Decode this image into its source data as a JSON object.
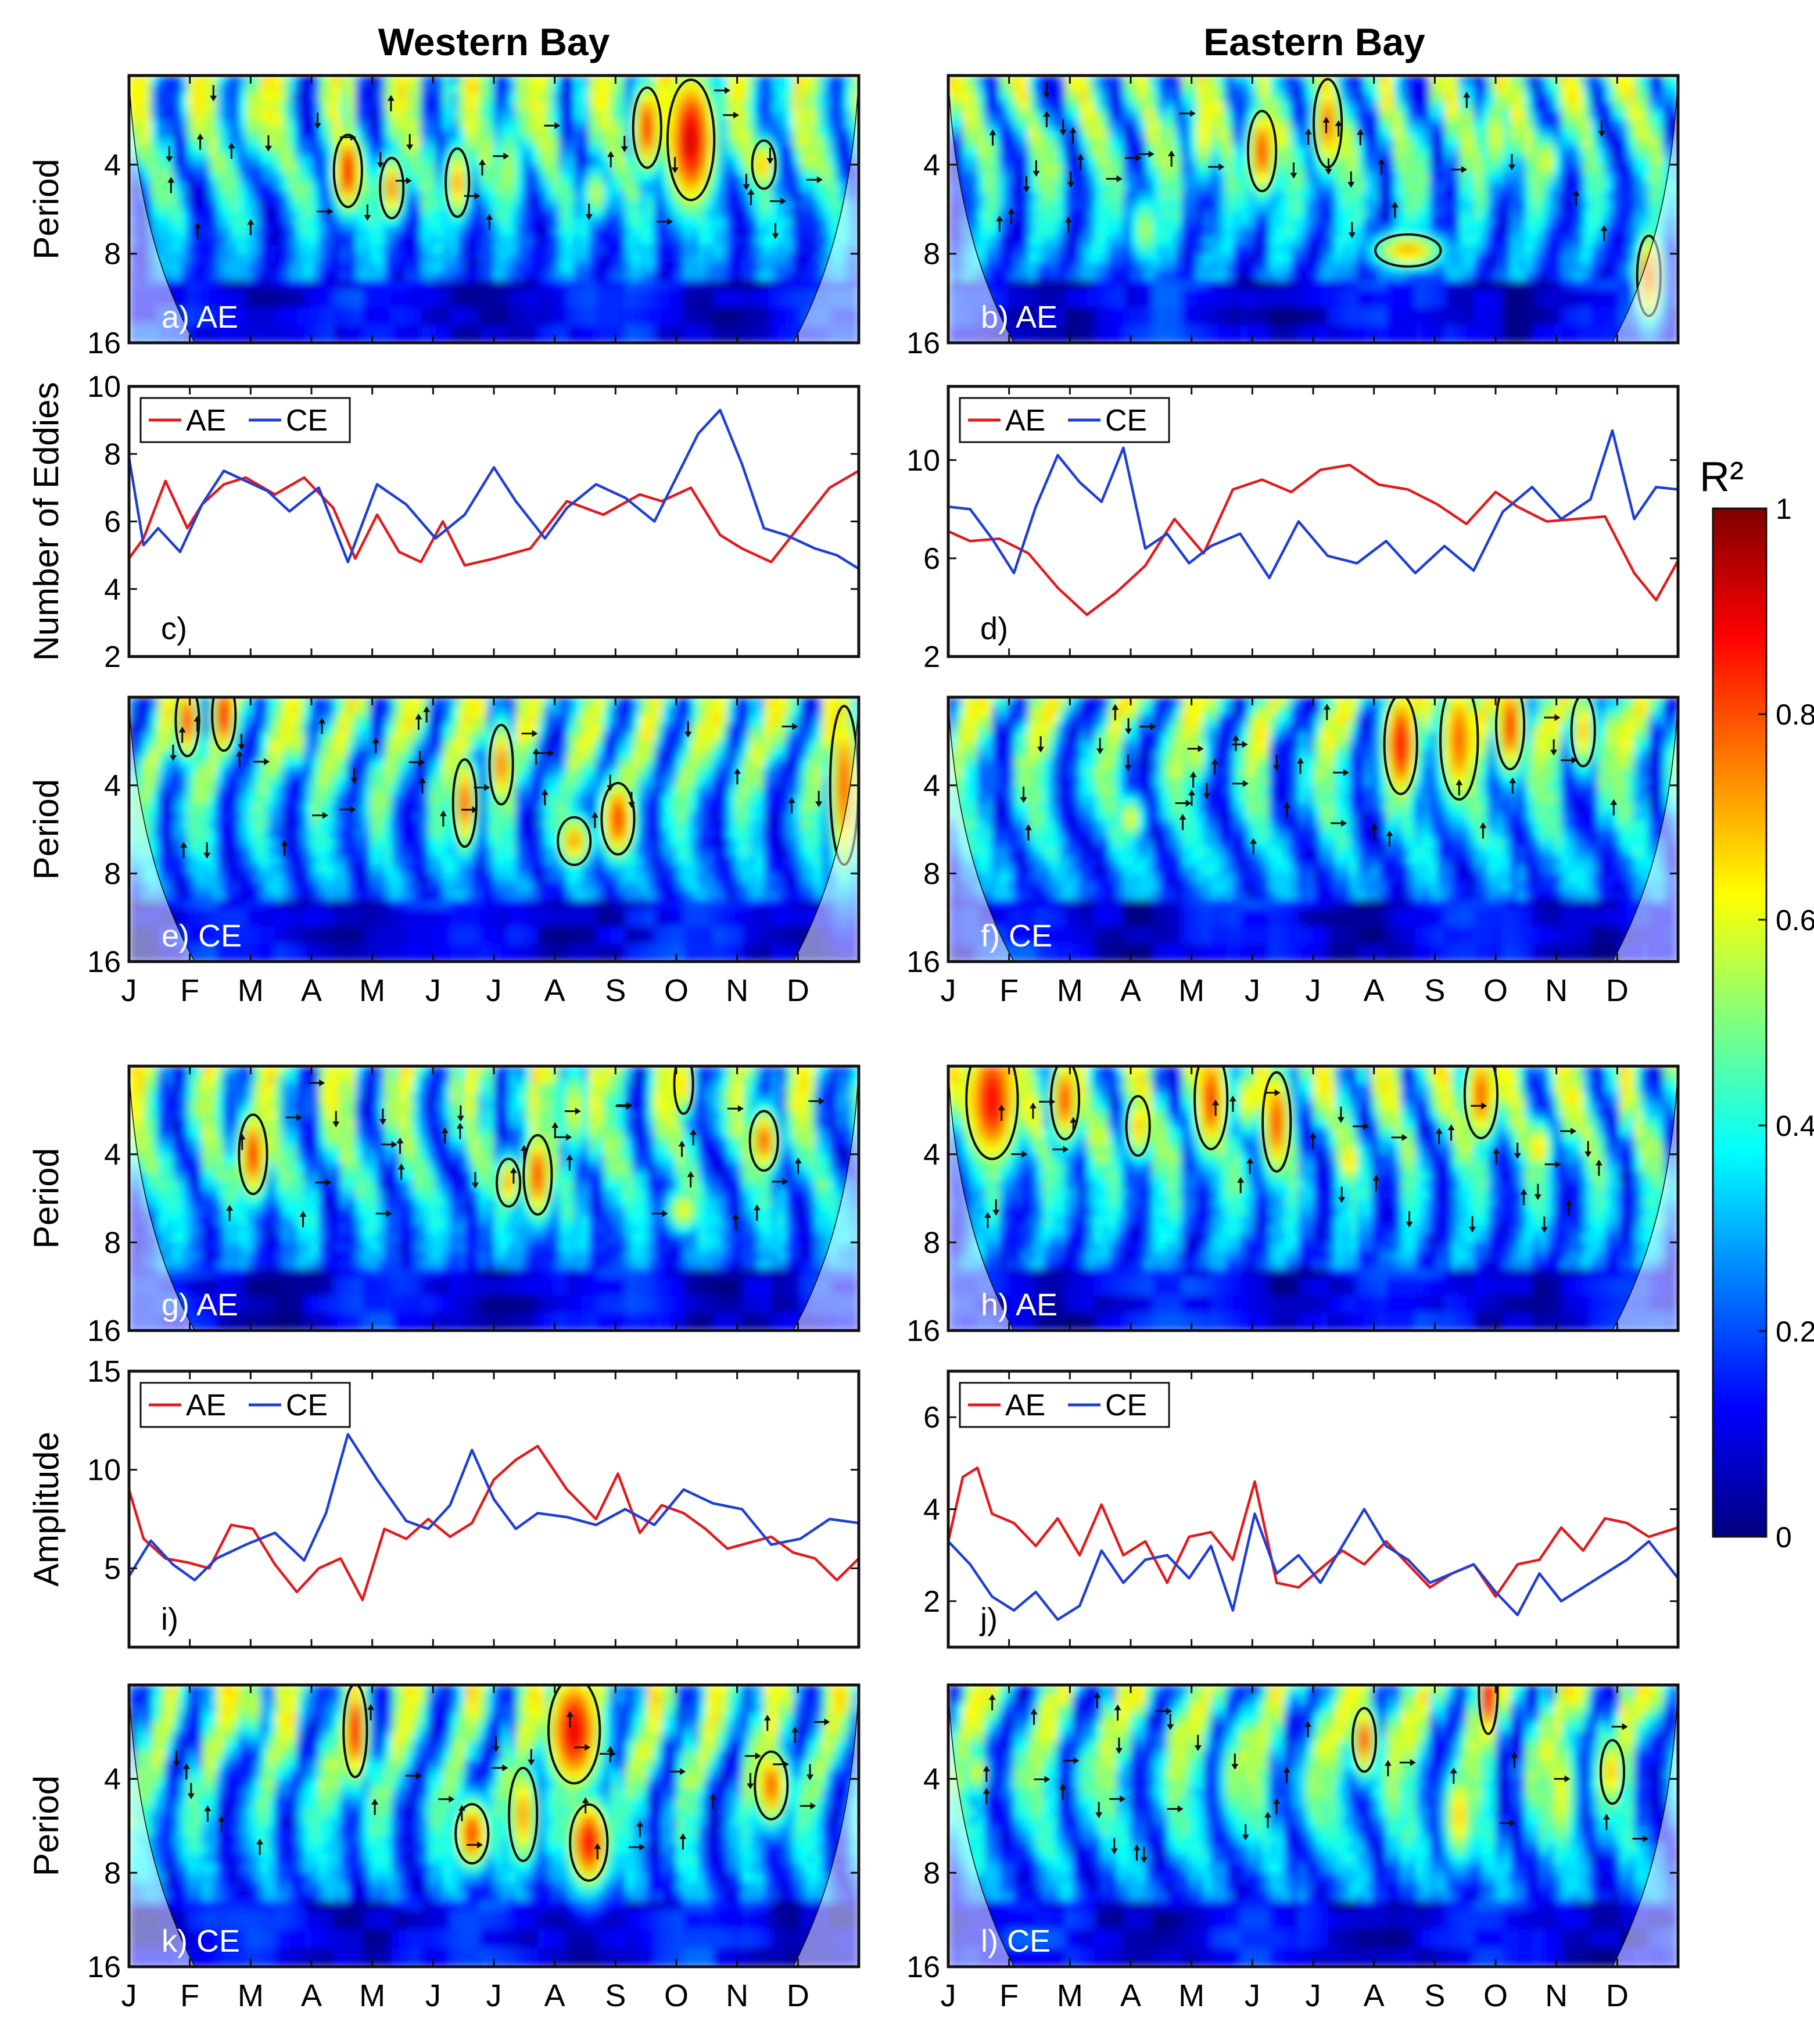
{
  "figure": {
    "col_titles": [
      "Western Bay",
      "Eastern Bay"
    ],
    "colorbar": {
      "title": "R²",
      "ticks": [
        "0",
        "0.2",
        "0.4",
        "0.6",
        "0.8",
        "1"
      ],
      "min": 0,
      "max": 1
    },
    "months": [
      "J",
      "F",
      "M",
      "A",
      "M",
      "J",
      "J",
      "A",
      "S",
      "O",
      "N",
      "D"
    ],
    "period_ticks": [
      "4",
      "8",
      "16"
    ],
    "ylabels": {
      "period": "Period",
      "eddies": "Number of Eddies",
      "amplitude": "Amplitude"
    },
    "legend": {
      "ae": "AE",
      "ce": "CE"
    }
  },
  "colors": {
    "ae": "#e31a1c",
    "ce": "#1f3fd6",
    "frame": "#111111"
  },
  "chart_data": [
    {
      "id": "a",
      "type": "heatmap",
      "label": "a) AE",
      "ylabel": "Period",
      "yticks": [
        4,
        8,
        16
      ],
      "blobs": [
        [
          0.3,
          4.2,
          0.012,
          0.18,
          0.85
        ],
        [
          0.36,
          4.8,
          0.01,
          0.15,
          0.75
        ],
        [
          0.45,
          4.6,
          0.01,
          0.17,
          0.72
        ],
        [
          0.77,
          3.3,
          0.02,
          0.3,
          0.92
        ],
        [
          0.71,
          3.0,
          0.012,
          0.2,
          0.82
        ],
        [
          0.87,
          4.0,
          0.01,
          0.12,
          0.7
        ],
        [
          0.93,
          3.8,
          0.008,
          0.1,
          0.62
        ],
        [
          0.17,
          2.6,
          0.01,
          0.2,
          0.6
        ],
        [
          0.52,
          4.2,
          0.012,
          0.25,
          0.55
        ],
        [
          0.64,
          5.0,
          0.01,
          0.12,
          0.58
        ]
      ]
    },
    {
      "id": "b",
      "type": "heatmap",
      "label": "b) AE",
      "ylabel": "",
      "yticks": [
        4,
        8,
        16
      ],
      "blobs": [
        [
          0.43,
          3.6,
          0.012,
          0.2,
          0.8
        ],
        [
          0.52,
          2.9,
          0.012,
          0.22,
          0.76
        ],
        [
          0.35,
          3.1,
          0.01,
          0.2,
          0.65
        ],
        [
          0.63,
          7.8,
          0.028,
          0.08,
          0.7
        ],
        [
          0.82,
          3.9,
          0.01,
          0.12,
          0.62
        ],
        [
          0.96,
          9.5,
          0.01,
          0.2,
          0.78
        ],
        [
          0.27,
          6.6,
          0.012,
          0.15,
          0.55
        ],
        [
          0.75,
          3.2,
          0.012,
          0.2,
          0.6
        ]
      ]
    },
    {
      "id": "c",
      "type": "line",
      "label": "c)",
      "ylabel": "Number of Eddies",
      "ylim": [
        2,
        10
      ],
      "yticks": [
        2,
        4,
        6,
        8,
        10
      ],
      "series": [
        {
          "name": "AE",
          "x": [
            0,
            0.02,
            0.05,
            0.08,
            0.1,
            0.13,
            0.16,
            0.2,
            0.24,
            0.28,
            0.31,
            0.34,
            0.37,
            0.4,
            0.43,
            0.46,
            0.5,
            0.55,
            0.6,
            0.65,
            0.7,
            0.73,
            0.77,
            0.81,
            0.84,
            0.88,
            0.92,
            0.96,
            1.0
          ],
          "values": [
            4.9,
            5.5,
            7.2,
            5.8,
            6.5,
            7.1,
            7.3,
            6.8,
            7.3,
            6.4,
            4.9,
            6.2,
            5.1,
            4.8,
            6.0,
            4.7,
            4.9,
            5.2,
            6.6,
            6.2,
            6.8,
            6.6,
            7.0,
            5.6,
            5.2,
            4.8,
            5.9,
            7.0,
            7.5
          ]
        },
        {
          "name": "CE",
          "x": [
            0,
            0.02,
            0.04,
            0.07,
            0.1,
            0.13,
            0.16,
            0.19,
            0.22,
            0.26,
            0.3,
            0.34,
            0.38,
            0.42,
            0.46,
            0.5,
            0.53,
            0.57,
            0.6,
            0.64,
            0.68,
            0.72,
            0.75,
            0.78,
            0.81,
            0.84,
            0.87,
            0.9,
            0.94,
            0.97,
            1.0
          ],
          "values": [
            7.9,
            5.3,
            5.8,
            5.1,
            6.5,
            7.5,
            7.2,
            6.9,
            6.3,
            7.0,
            4.8,
            7.1,
            6.5,
            5.5,
            6.2,
            7.6,
            6.6,
            5.5,
            6.4,
            7.1,
            6.7,
            6.0,
            7.3,
            8.6,
            9.3,
            7.7,
            5.8,
            5.6,
            5.2,
            5.0,
            4.6
          ]
        }
      ]
    },
    {
      "id": "d",
      "type": "line",
      "label": "d)",
      "ylabel": "",
      "ylim": [
        2,
        13
      ],
      "yticks": [
        2,
        6,
        10
      ],
      "series": [
        {
          "name": "AE",
          "x": [
            0,
            0.03,
            0.07,
            0.11,
            0.15,
            0.19,
            0.23,
            0.27,
            0.31,
            0.35,
            0.39,
            0.43,
            0.47,
            0.51,
            0.55,
            0.59,
            0.63,
            0.67,
            0.71,
            0.75,
            0.78,
            0.82,
            0.86,
            0.9,
            0.94,
            0.97,
            1.0
          ],
          "values": [
            7.1,
            6.7,
            6.8,
            6.2,
            4.8,
            3.7,
            4.6,
            5.7,
            7.6,
            6.2,
            8.8,
            9.2,
            8.7,
            9.6,
            9.8,
            9.0,
            8.8,
            8.2,
            7.4,
            8.7,
            8.1,
            7.5,
            7.6,
            7.7,
            5.4,
            4.3,
            5.9
          ]
        },
        {
          "name": "CE",
          "x": [
            0,
            0.03,
            0.06,
            0.09,
            0.12,
            0.15,
            0.18,
            0.21,
            0.24,
            0.27,
            0.3,
            0.33,
            0.36,
            0.4,
            0.44,
            0.48,
            0.52,
            0.56,
            0.6,
            0.64,
            0.68,
            0.72,
            0.76,
            0.8,
            0.84,
            0.88,
            0.91,
            0.94,
            0.97,
            1.0
          ],
          "values": [
            8.1,
            8.0,
            6.8,
            5.4,
            8.1,
            10.2,
            9.1,
            8.3,
            10.5,
            6.4,
            7.0,
            5.8,
            6.5,
            7.0,
            5.2,
            7.5,
            6.1,
            5.8,
            6.7,
            5.4,
            6.5,
            5.5,
            7.9,
            8.9,
            7.6,
            8.4,
            11.2,
            7.6,
            8.9,
            8.8
          ]
        }
      ]
    },
    {
      "id": "e",
      "type": "heatmap",
      "label": "e) CE",
      "ylabel": "Period",
      "yticks": [
        4,
        8,
        16
      ],
      "blobs": [
        [
          0.08,
          2.4,
          0.01,
          0.18,
          0.8
        ],
        [
          0.13,
          2.3,
          0.01,
          0.18,
          0.85
        ],
        [
          0.46,
          4.6,
          0.01,
          0.22,
          0.78
        ],
        [
          0.51,
          3.4,
          0.01,
          0.2,
          0.76
        ],
        [
          0.61,
          6.2,
          0.014,
          0.12,
          0.72
        ],
        [
          0.67,
          5.2,
          0.014,
          0.18,
          0.82
        ],
        [
          0.98,
          4.0,
          0.012,
          0.4,
          0.78
        ],
        [
          0.23,
          2.8,
          0.008,
          0.12,
          0.62
        ],
        [
          0.34,
          4.6,
          0.01,
          0.2,
          0.55
        ]
      ]
    },
    {
      "id": "f",
      "type": "heatmap",
      "label": "f) CE",
      "ylabel": "",
      "yticks": [
        4,
        8,
        16
      ],
      "blobs": [
        [
          0.62,
          2.9,
          0.014,
          0.25,
          0.88
        ],
        [
          0.7,
          2.8,
          0.016,
          0.3,
          0.78
        ],
        [
          0.77,
          2.5,
          0.012,
          0.22,
          0.82
        ],
        [
          0.87,
          2.6,
          0.01,
          0.18,
          0.7
        ],
        [
          0.34,
          3.1,
          0.01,
          0.15,
          0.6
        ],
        [
          0.25,
          5.2,
          0.01,
          0.1,
          0.62
        ],
        [
          0.91,
          2.7,
          0.01,
          0.15,
          0.6
        ]
      ]
    },
    {
      "id": "g",
      "type": "heatmap",
      "label": "g) AE",
      "ylabel": "Period",
      "yticks": [
        4,
        8,
        16
      ],
      "blobs": [
        [
          0.17,
          4.0,
          0.012,
          0.2,
          0.82
        ],
        [
          0.52,
          5.0,
          0.01,
          0.12,
          0.72
        ],
        [
          0.56,
          4.7,
          0.012,
          0.2,
          0.8
        ],
        [
          0.76,
          2.3,
          0.008,
          0.15,
          0.7
        ],
        [
          0.87,
          3.6,
          0.012,
          0.15,
          0.78
        ],
        [
          0.76,
          6.2,
          0.014,
          0.1,
          0.62
        ],
        [
          0.61,
          2.8,
          0.012,
          0.2,
          0.6
        ],
        [
          0.38,
          2.8,
          0.01,
          0.15,
          0.55
        ]
      ]
    },
    {
      "id": "h",
      "type": "heatmap",
      "label": "h) AE",
      "ylabel": "",
      "yticks": [
        4,
        8,
        16
      ],
      "blobs": [
        [
          0.06,
          2.6,
          0.022,
          0.3,
          0.88
        ],
        [
          0.16,
          2.6,
          0.012,
          0.2,
          0.8
        ],
        [
          0.36,
          2.6,
          0.014,
          0.25,
          0.82
        ],
        [
          0.45,
          3.1,
          0.012,
          0.25,
          0.8
        ],
        [
          0.26,
          3.2,
          0.01,
          0.15,
          0.7
        ],
        [
          0.73,
          2.5,
          0.014,
          0.22,
          0.78
        ],
        [
          0.81,
          3.8,
          0.01,
          0.12,
          0.68
        ],
        [
          0.55,
          4.2,
          0.01,
          0.12,
          0.68
        ],
        [
          0.41,
          2.6,
          0.01,
          0.15,
          0.65
        ]
      ]
    },
    {
      "id": "i",
      "type": "line",
      "label": "i)",
      "ylabel": "Amplitude",
      "ylim": [
        1,
        15
      ],
      "yticks": [
        5,
        10,
        15
      ],
      "series": [
        {
          "name": "AE",
          "x": [
            0,
            0.02,
            0.05,
            0.08,
            0.11,
            0.14,
            0.17,
            0.2,
            0.23,
            0.26,
            0.29,
            0.32,
            0.35,
            0.38,
            0.41,
            0.44,
            0.47,
            0.5,
            0.53,
            0.56,
            0.6,
            0.64,
            0.67,
            0.7,
            0.73,
            0.76,
            0.79,
            0.82,
            0.85,
            0.88,
            0.91,
            0.94,
            0.97,
            1.0
          ],
          "values": [
            9.0,
            6.5,
            5.5,
            5.3,
            5.0,
            7.2,
            7.0,
            5.2,
            3.8,
            5.0,
            5.5,
            3.4,
            7.0,
            6.5,
            7.5,
            6.6,
            7.3,
            9.5,
            10.5,
            11.2,
            9.0,
            7.5,
            9.8,
            6.8,
            8.2,
            7.8,
            7.0,
            6.0,
            6.3,
            6.6,
            5.8,
            5.5,
            4.4,
            5.5
          ]
        },
        {
          "name": "CE",
          "x": [
            0,
            0.03,
            0.06,
            0.09,
            0.12,
            0.16,
            0.2,
            0.24,
            0.27,
            0.3,
            0.34,
            0.38,
            0.41,
            0.44,
            0.47,
            0.5,
            0.53,
            0.56,
            0.6,
            0.64,
            0.68,
            0.72,
            0.76,
            0.8,
            0.84,
            0.88,
            0.92,
            0.96,
            1.0
          ],
          "values": [
            4.6,
            6.4,
            5.2,
            4.4,
            5.5,
            6.2,
            6.8,
            5.4,
            7.8,
            11.8,
            9.5,
            7.4,
            7.0,
            8.2,
            11.0,
            8.5,
            7.0,
            7.8,
            7.6,
            7.2,
            8.0,
            7.2,
            9.0,
            8.3,
            8.0,
            6.2,
            6.5,
            7.5,
            7.3
          ]
        }
      ]
    },
    {
      "id": "j",
      "type": "line",
      "label": "j)",
      "ylabel": "",
      "ylim": [
        1,
        7
      ],
      "yticks": [
        2,
        4,
        6
      ],
      "series": [
        {
          "name": "AE",
          "x": [
            0,
            0.02,
            0.04,
            0.06,
            0.09,
            0.12,
            0.15,
            0.18,
            0.21,
            0.24,
            0.27,
            0.3,
            0.33,
            0.36,
            0.39,
            0.42,
            0.45,
            0.48,
            0.51,
            0.54,
            0.57,
            0.6,
            0.63,
            0.66,
            0.69,
            0.72,
            0.75,
            0.78,
            0.81,
            0.84,
            0.87,
            0.9,
            0.93,
            0.96,
            1.0
          ],
          "values": [
            3.3,
            4.7,
            4.9,
            3.9,
            3.7,
            3.2,
            3.8,
            3.0,
            4.1,
            3.0,
            3.3,
            2.4,
            3.4,
            3.5,
            2.9,
            4.6,
            2.4,
            2.3,
            2.7,
            3.1,
            2.8,
            3.3,
            2.8,
            2.3,
            2.6,
            2.8,
            2.1,
            2.8,
            2.9,
            3.6,
            3.1,
            3.8,
            3.7,
            3.4,
            3.6
          ]
        },
        {
          "name": "CE",
          "x": [
            0,
            0.03,
            0.06,
            0.09,
            0.12,
            0.15,
            0.18,
            0.21,
            0.24,
            0.27,
            0.3,
            0.33,
            0.36,
            0.39,
            0.42,
            0.45,
            0.48,
            0.51,
            0.54,
            0.57,
            0.6,
            0.63,
            0.66,
            0.69,
            0.72,
            0.75,
            0.78,
            0.81,
            0.84,
            0.87,
            0.9,
            0.93,
            0.96,
            1.0
          ],
          "values": [
            3.3,
            2.8,
            2.1,
            1.8,
            2.2,
            1.6,
            1.9,
            3.1,
            2.4,
            2.9,
            3.0,
            2.5,
            3.2,
            1.8,
            3.9,
            2.6,
            3.0,
            2.4,
            3.2,
            4.0,
            3.2,
            2.9,
            2.4,
            2.6,
            2.8,
            2.2,
            1.7,
            2.6,
            2.0,
            2.3,
            2.6,
            2.9,
            3.3,
            2.5
          ]
        }
      ]
    },
    {
      "id": "k",
      "type": "heatmap",
      "label": "k) CE",
      "ylabel": "Period",
      "yticks": [
        4,
        8,
        16
      ],
      "blobs": [
        [
          0.31,
          2.8,
          0.01,
          0.22,
          0.85
        ],
        [
          0.47,
          6.0,
          0.014,
          0.14,
          0.82
        ],
        [
          0.54,
          5.2,
          0.012,
          0.22,
          0.72
        ],
        [
          0.61,
          2.8,
          0.022,
          0.25,
          0.9
        ],
        [
          0.63,
          6.4,
          0.016,
          0.18,
          0.88
        ],
        [
          0.88,
          4.2,
          0.014,
          0.16,
          0.78
        ],
        [
          0.71,
          3.2,
          0.01,
          0.12,
          0.62
        ],
        [
          0.17,
          2.3,
          0.008,
          0.15,
          0.6
        ],
        [
          0.81,
          2.5,
          0.008,
          0.12,
          0.55
        ]
      ]
    },
    {
      "id": "l",
      "type": "heatmap",
      "label": "l) CE",
      "ylabel": "",
      "yticks": [
        4,
        8,
        16
      ],
      "blobs": [
        [
          0.74,
          2.1,
          0.008,
          0.2,
          0.92
        ],
        [
          0.57,
          3.0,
          0.01,
          0.15,
          0.8
        ],
        [
          0.7,
          5.2,
          0.012,
          0.2,
          0.68
        ],
        [
          0.84,
          4.4,
          0.012,
          0.3,
          0.62
        ],
        [
          0.91,
          3.8,
          0.01,
          0.15,
          0.7
        ],
        [
          0.04,
          3.8,
          0.008,
          0.1,
          0.62
        ],
        [
          0.39,
          4.0,
          0.01,
          0.2,
          0.55
        ],
        [
          0.5,
          4.2,
          0.01,
          0.2,
          0.55
        ]
      ]
    }
  ]
}
